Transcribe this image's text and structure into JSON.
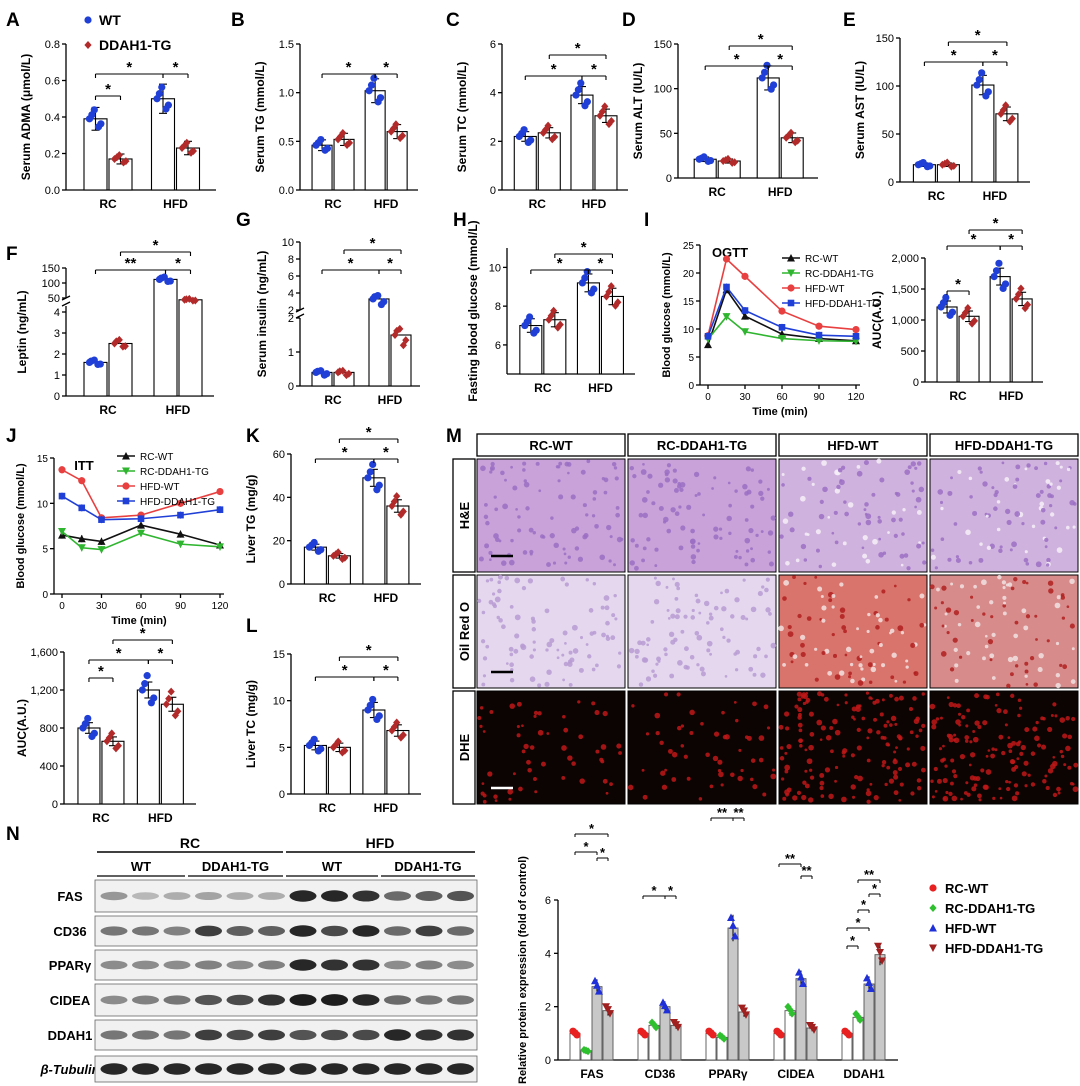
{
  "figure": {
    "colors": {
      "wt": "#1f3fd6",
      "tg": "#b22a2a",
      "rc_wt": "#111111",
      "rc_tg": "#2fb52f",
      "hfd_wt": "#e84040",
      "hfd_tg": "#1f3fd6",
      "n_rc_wt": "#e82020",
      "n_rc_tg": "#2fc02f",
      "n_hfd_wt": "#2030d8",
      "n_hfd_tg": "#a02020"
    },
    "legend_top": {
      "wt": "WT",
      "tg": "DDAH1-TG"
    },
    "panel_M": {
      "letter": "M",
      "columns": [
        "RC-WT",
        "RC-DDAH1-TG",
        "HFD-WT",
        "HFD-DDAH1-TG"
      ],
      "rows": [
        "H&E",
        "Oil Red O",
        "DHE"
      ]
    },
    "panel_N": {
      "letter": "N",
      "groups": [
        "RC",
        "HFD"
      ],
      "subgroups": [
        "WT",
        "DDAH1-TG",
        "WT",
        "DDAH1-TG"
      ],
      "proteins": [
        "FAS",
        "CD36",
        "PPARγ",
        "CIDEA",
        "DDAH1",
        "β-Tubulin"
      ]
    }
  },
  "chart_data": [
    {
      "id": "A",
      "type": "bar",
      "title": "",
      "ylabel": "Serum ADMA (μmol/L)",
      "categories": [
        "RC",
        "HFD"
      ],
      "ylim": [
        0,
        0.8
      ],
      "yticks": [
        "0.0",
        "0.2",
        "0.4",
        "0.6",
        "0.8"
      ],
      "series": [
        {
          "name": "WT",
          "values": [
            0.39,
            0.5
          ]
        },
        {
          "name": "DDAH1-TG",
          "values": [
            0.17,
            0.23
          ]
        }
      ],
      "significance": [
        "*",
        "*",
        "*"
      ]
    },
    {
      "id": "B",
      "type": "bar",
      "ylabel": "Serum TG (mmol/L)",
      "categories": [
        "RC",
        "HFD"
      ],
      "ylim": [
        0,
        1.5
      ],
      "yticks": [
        "0.0",
        "0.5",
        "1.0",
        "1.5"
      ],
      "series": [
        {
          "name": "WT",
          "values": [
            0.46,
            1.02
          ]
        },
        {
          "name": "DDAH1-TG",
          "values": [
            0.52,
            0.6
          ]
        }
      ],
      "significance": [
        "*",
        "*"
      ]
    },
    {
      "id": "C",
      "type": "bar",
      "ylabel": "Serum TC (mmol/L)",
      "categories": [
        "RC",
        "HFD"
      ],
      "ylim": [
        0,
        6
      ],
      "yticks": [
        "0",
        "2",
        "4",
        "6"
      ],
      "series": [
        {
          "name": "WT",
          "values": [
            2.2,
            3.9
          ]
        },
        {
          "name": "DDAH1-TG",
          "values": [
            2.35,
            3.05
          ]
        }
      ],
      "significance": [
        "*",
        "*",
        "*"
      ]
    },
    {
      "id": "D",
      "type": "bar",
      "ylabel": "Serum ALT (IU/L)",
      "categories": [
        "RC",
        "HFD"
      ],
      "ylim": [
        0,
        150
      ],
      "yticks": [
        "0",
        "50",
        "100",
        "150"
      ],
      "series": [
        {
          "name": "WT",
          "values": [
            21,
            112
          ]
        },
        {
          "name": "DDAH1-TG",
          "values": [
            19,
            45
          ]
        }
      ],
      "significance": [
        "*",
        "*",
        "*"
      ]
    },
    {
      "id": "E",
      "type": "bar",
      "ylabel": "Serum AST (IU/L)",
      "categories": [
        "RC",
        "HFD"
      ],
      "ylim": [
        0,
        150
      ],
      "yticks": [
        "0",
        "50",
        "100",
        "150"
      ],
      "series": [
        {
          "name": "WT",
          "values": [
            18,
            101
          ]
        },
        {
          "name": "DDAH1-TG",
          "values": [
            18,
            71
          ]
        }
      ],
      "significance": [
        "*",
        "*",
        "*"
      ]
    },
    {
      "id": "F",
      "type": "bar",
      "ylabel": "Leptin (ng/mL)",
      "categories": [
        "RC",
        "HFD"
      ],
      "broken_axis": true,
      "ylim": [
        0,
        150
      ],
      "yticks": [
        "0",
        "1",
        "2",
        "3",
        "4",
        "50",
        "100",
        "150"
      ],
      "series": [
        {
          "name": "WT",
          "values": [
            1.6,
            112
          ]
        },
        {
          "name": "DDAH1-TG",
          "values": [
            2.5,
            44
          ]
        }
      ],
      "significance": [
        "**",
        "*",
        "*"
      ]
    },
    {
      "id": "G",
      "type": "bar",
      "ylabel": "Serum insulin (ng/mL)",
      "categories": [
        "RC",
        "HFD"
      ],
      "broken_axis": true,
      "ylim": [
        0,
        100
      ],
      "yticks": [
        "0",
        "1",
        "2",
        "2",
        "4",
        "6",
        "8",
        "10"
      ],
      "series": [
        {
          "name": "WT",
          "values": [
            0.4,
            3.3
          ]
        },
        {
          "name": "DDAH1-TG",
          "values": [
            0.4,
            1.5
          ]
        }
      ],
      "significance": [
        "*",
        "*",
        "*"
      ]
    },
    {
      "id": "H",
      "type": "bar",
      "ylabel": "Fasting blood glucose (mmol/L)",
      "categories": [
        "RC",
        "HFD"
      ],
      "ylim": [
        0,
        12
      ],
      "yticks": [
        "6",
        "8",
        "10"
      ],
      "series": [
        {
          "name": "WT",
          "values": [
            7.0,
            9.2
          ]
        },
        {
          "name": "DDAH1-TG",
          "values": [
            7.3,
            8.5
          ]
        }
      ],
      "significance": [
        "*",
        "*",
        "*"
      ]
    },
    {
      "id": "I_curve",
      "type": "line",
      "title": "OGTT",
      "xlabel": "Time (min)",
      "ylabel": "Blood glucose (mmol/L)",
      "xlim": [
        0,
        120
      ],
      "xticks": [
        "0",
        "30",
        "60",
        "90",
        "120"
      ],
      "yticks": [
        "0",
        "5",
        "10",
        "15",
        "20",
        "25"
      ],
      "x": [
        0,
        15,
        30,
        60,
        90,
        120
      ],
      "series": [
        {
          "name": "RC-WT",
          "values": [
            7.2,
            17.0,
            12.3,
            9.1,
            8.3,
            7.9
          ]
        },
        {
          "name": "RC-DDAH1-TG",
          "values": [
            8.2,
            12.2,
            9.5,
            8.3,
            7.9,
            7.8
          ]
        },
        {
          "name": "HFD-WT",
          "values": [
            8.8,
            22.5,
            19.4,
            13.2,
            10.5,
            9.9
          ]
        },
        {
          "name": "HFD-DDAH1-TG",
          "values": [
            8.7,
            17.5,
            13.3,
            10.3,
            8.9,
            8.7
          ]
        }
      ]
    },
    {
      "id": "I_auc",
      "type": "bar",
      "ylabel": "AUC(A.U.)",
      "categories": [
        "RC",
        "HFD"
      ],
      "ylim": [
        0,
        2000
      ],
      "yticks": [
        "0",
        "500",
        "1,000",
        "1,500",
        "2,000"
      ],
      "series": [
        {
          "name": "WT",
          "values": [
            1210,
            1700
          ]
        },
        {
          "name": "DDAH1-TG",
          "values": [
            1060,
            1340
          ]
        }
      ],
      "significance": [
        "*",
        "*",
        "*",
        "*"
      ]
    },
    {
      "id": "J_curve",
      "type": "line",
      "title": "ITT",
      "xlabel": "Time (min)",
      "ylabel": "Blood glucose (mmol/L)",
      "xlim": [
        0,
        120
      ],
      "ylim": [
        0,
        15
      ],
      "xticks": [
        "0",
        "30",
        "60",
        "90",
        "120"
      ],
      "yticks": [
        "0",
        "5",
        "10",
        "15"
      ],
      "x": [
        0,
        15,
        30,
        60,
        90,
        120
      ],
      "series": [
        {
          "name": "RC-WT",
          "values": [
            6.5,
            6.1,
            5.8,
            7.6,
            6.6,
            5.4
          ]
        },
        {
          "name": "RC-DDAH1-TG",
          "values": [
            6.9,
            5.1,
            4.9,
            6.7,
            5.5,
            5.2
          ]
        },
        {
          "name": "HFD-WT",
          "values": [
            13.7,
            12.5,
            8.4,
            8.7,
            10.0,
            11.3
          ]
        },
        {
          "name": "HFD-DDAH1-TG",
          "values": [
            10.8,
            9.5,
            8.2,
            8.3,
            8.7,
            9.3
          ]
        }
      ]
    },
    {
      "id": "J_auc",
      "type": "bar",
      "ylabel": "AUC(A.U.)",
      "categories": [
        "RC",
        "HFD"
      ],
      "ylim": [
        0,
        1600
      ],
      "yticks": [
        "0",
        "400",
        "800",
        "1,200",
        "1,600"
      ],
      "series": [
        {
          "name": "WT",
          "values": [
            800,
            1200
          ]
        },
        {
          "name": "DDAH1-TG",
          "values": [
            660,
            1050
          ]
        }
      ],
      "significance": [
        "*",
        "*",
        "*",
        "*"
      ]
    },
    {
      "id": "K",
      "type": "bar",
      "ylabel": "Liver TG (mg/g)",
      "categories": [
        "RC",
        "HFD"
      ],
      "ylim": [
        0,
        60
      ],
      "yticks": [
        "0",
        "20",
        "40",
        "60"
      ],
      "series": [
        {
          "name": "WT",
          "values": [
            17,
            49
          ]
        },
        {
          "name": "DDAH1-TG",
          "values": [
            13,
            36
          ]
        }
      ],
      "significance": [
        "*",
        "*",
        "*"
      ]
    },
    {
      "id": "L",
      "type": "bar",
      "ylabel": "Liver TC (mg/g)",
      "categories": [
        "RC",
        "HFD"
      ],
      "ylim": [
        0,
        15
      ],
      "yticks": [
        "0",
        "5",
        "10",
        "15"
      ],
      "series": [
        {
          "name": "WT",
          "values": [
            5.2,
            9.0
          ]
        },
        {
          "name": "DDAH1-TG",
          "values": [
            5.0,
            6.8
          ]
        }
      ],
      "significance": [
        "*",
        "*",
        "*"
      ]
    },
    {
      "id": "N_bar",
      "type": "bar",
      "ylabel": "Relative protein expression (fold of control)",
      "categories": [
        "FAS",
        "CD36",
        "PPARγ",
        "CIDEA",
        "DDAH1"
      ],
      "ylim": [
        0,
        6
      ],
      "yticks": [
        "0",
        "2",
        "4",
        "6"
      ],
      "series": [
        {
          "name": "RC-WT",
          "values": [
            1.0,
            1.0,
            1.0,
            1.0,
            1.0
          ]
        },
        {
          "name": "RC-DDAH1-TG",
          "values": [
            0.35,
            1.3,
            0.85,
            1.85,
            1.6
          ]
        },
        {
          "name": "HFD-WT",
          "values": [
            2.75,
            2.0,
            4.95,
            3.05,
            2.85
          ]
        },
        {
          "name": "HFD-DDAH1-TG",
          "values": [
            1.85,
            1.3,
            1.8,
            1.2,
            3.95
          ]
        }
      ],
      "significance": [
        "*",
        "*",
        "*",
        "*",
        "*",
        "**",
        "**",
        "**",
        "**",
        "*",
        "*",
        "*",
        "*",
        "**"
      ]
    }
  ]
}
